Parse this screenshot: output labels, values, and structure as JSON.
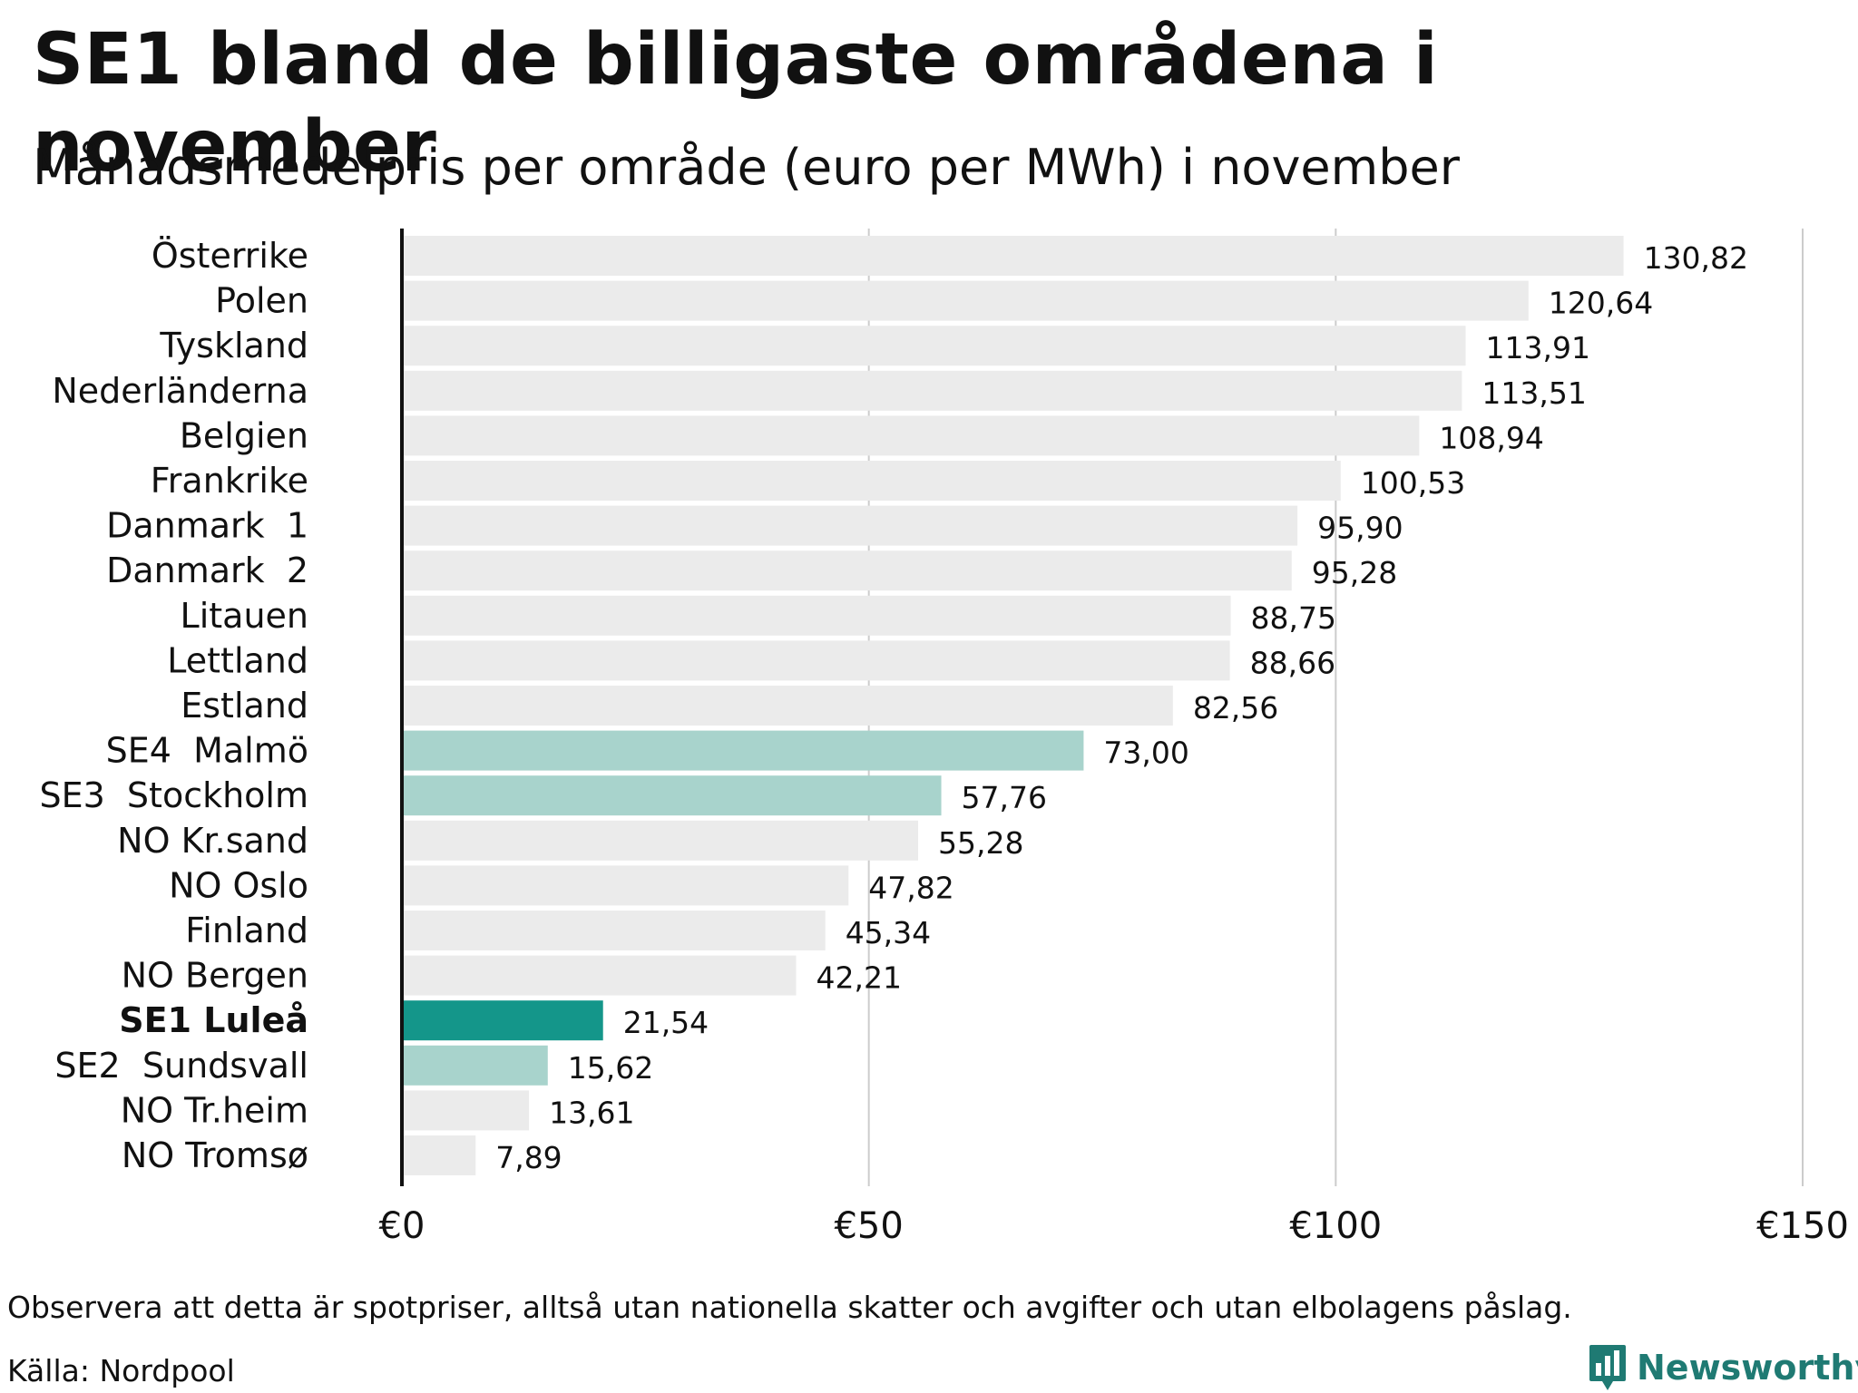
{
  "header": {
    "title": "SE1 bland de billigaste områdena i november",
    "subtitle": "Månadsmedelpris per område (euro per MWh) i november"
  },
  "chart_data": {
    "type": "bar",
    "orientation": "horizontal",
    "categories": [
      "Österrike",
      "Polen",
      "Tyskland",
      "Nederländerna",
      "Belgien",
      "Frankrike",
      "Danmark  1",
      "Danmark  2",
      "Litauen",
      "Lettland",
      "Estland",
      "SE4  Malmö",
      "SE3  Stockholm",
      "NO Kr.sand",
      "NO Oslo",
      "Finland",
      "NO Bergen",
      "SE1 Luleå",
      "SE2  Sundsvall",
      "NO Tr.heim",
      "NO Tromsø"
    ],
    "values": [
      130.82,
      120.64,
      113.91,
      113.51,
      108.94,
      100.53,
      95.9,
      95.28,
      88.75,
      88.66,
      82.56,
      73.0,
      57.76,
      55.28,
      47.82,
      45.34,
      42.21,
      21.54,
      15.62,
      13.61,
      7.89
    ],
    "value_labels": [
      "130,82",
      "120,64",
      "113,91",
      "113,51",
      "108,94",
      "100,53",
      "95,90",
      "95,28",
      "88,75",
      "88,66",
      "82,56",
      "73,00",
      "57,76",
      "55,28",
      "47,82",
      "45,34",
      "42,21",
      "21,54",
      "15,62",
      "13,61",
      "7,89"
    ],
    "bar_kind": [
      "other",
      "other",
      "other",
      "other",
      "other",
      "other",
      "other",
      "other",
      "other",
      "other",
      "other",
      "se",
      "se",
      "other",
      "other",
      "other",
      "other",
      "highlight",
      "se",
      "other",
      "other"
    ],
    "colors": {
      "other": "#ebebeb",
      "se": "#a8d3cc",
      "highlight": "#14968a",
      "gridline": "#cccccc",
      "axis": "#111111"
    },
    "xlim": [
      0,
      150
    ],
    "xticks": [
      0,
      50,
      100,
      150
    ],
    "xtick_labels": [
      "€0",
      "€50",
      "€100",
      "€150"
    ],
    "xlabel": "",
    "ylabel": "",
    "grid": true,
    "legend": "none"
  },
  "footer": {
    "note": "Observera att detta är spotpriser, alltså utan nationella skatter och avgifter och utan elbolagens påslag.",
    "source": "Källa: Nordpool",
    "brand": "Newsworthy",
    "brand_icon": "newsworthy-chart-icon"
  }
}
